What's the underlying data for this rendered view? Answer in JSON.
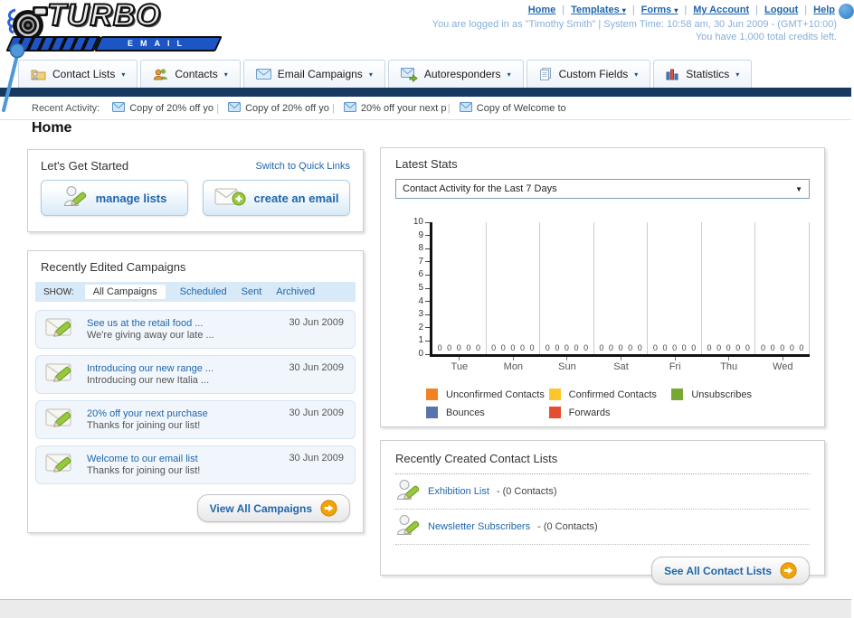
{
  "colors": {
    "link": "#1f66ad",
    "navy": "#17395f",
    "logo_blue": "#1d55c4"
  },
  "header": {
    "logo": {
      "word": "TURBO",
      "sub": "EMAIL"
    },
    "nav_links": [
      {
        "label": "Home",
        "dropdown": false
      },
      {
        "label": "Templates",
        "dropdown": true
      },
      {
        "label": "Forms",
        "dropdown": true
      },
      {
        "label": "My Account",
        "dropdown": false
      },
      {
        "label": "Logout",
        "dropdown": false
      },
      {
        "label": "Help",
        "dropdown": false
      }
    ],
    "login_info": "You are logged in as \"Timothy Smith\" | System Time: 10:58 am, 30 Jun 2009 - (GMT+10:00)",
    "credits_info": "You have 1,000 total credits left."
  },
  "nav_tabs": [
    {
      "label": "Contact Lists",
      "icon": "folder-contact-icon"
    },
    {
      "label": "Contacts",
      "icon": "contacts-icon"
    },
    {
      "label": "Email Campaigns",
      "icon": "envelope-icon"
    },
    {
      "label": "Autoresponders",
      "icon": "autoresponder-icon"
    },
    {
      "label": "Custom Fields",
      "icon": "pages-icon"
    },
    {
      "label": "Statistics",
      "icon": "chart-icon"
    }
  ],
  "recent_activity": {
    "label": "Recent Activity:",
    "items": [
      "Copy of 20% off yo",
      "Copy of 20% off yo",
      "20% off your next p",
      "Copy of Welcome to"
    ]
  },
  "page_title": "Home",
  "get_started": {
    "title": "Let's Get Started",
    "switch_link": "Switch to Quick Links",
    "buttons": [
      {
        "label": "manage lists",
        "icon": "list-edit-icon"
      },
      {
        "label": "create an email",
        "icon": "create-email-icon"
      }
    ]
  },
  "campaigns_panel": {
    "title": "Recently Edited Campaigns",
    "show_label": "SHOW:",
    "filters": [
      {
        "label": "All Campaigns",
        "active": true
      },
      {
        "label": "Scheduled",
        "active": false
      },
      {
        "label": "Sent",
        "active": false
      },
      {
        "label": "Archived",
        "active": false
      }
    ],
    "items": [
      {
        "title": "See us at the retail food ...",
        "subtitle": "We're giving away our late ...",
        "date": "30 Jun 2009"
      },
      {
        "title": "Introducing our new range ...",
        "subtitle": "Introducing our new Italia ...",
        "date": "30 Jun 2009"
      },
      {
        "title": "20% off your next purchase",
        "subtitle": "Thanks for joining our list!",
        "date": "30 Jun 2009"
      },
      {
        "title": "Welcome to our email list",
        "subtitle": "Thanks for joining our list!",
        "date": "30 Jun 2009"
      }
    ],
    "view_all_label": "View All Campaigns"
  },
  "stats_panel": {
    "title": "Latest Stats",
    "dropdown_value": "Contact Activity for the Last 7 Days"
  },
  "chart_data": {
    "type": "bar",
    "title": "Contact Activity for the Last 7 Days",
    "categories": [
      "Tue",
      "Mon",
      "Sun",
      "Sat",
      "Fri",
      "Thu",
      "Wed"
    ],
    "series": [
      {
        "name": "Unconfirmed Contacts",
        "color": "#f08221",
        "values": [
          0,
          0,
          0,
          0,
          0,
          0,
          0
        ]
      },
      {
        "name": "Confirmed Contacts",
        "color": "#fcc62c",
        "values": [
          0,
          0,
          0,
          0,
          0,
          0,
          0
        ]
      },
      {
        "name": "Unsubscribes",
        "color": "#76a832",
        "values": [
          0,
          0,
          0,
          0,
          0,
          0,
          0
        ]
      },
      {
        "name": "Bounces",
        "color": "#5775ad",
        "values": [
          0,
          0,
          0,
          0,
          0,
          0,
          0
        ]
      },
      {
        "name": "Forwards",
        "color": "#e64c2e",
        "values": [
          0,
          0,
          0,
          0,
          0,
          0,
          0
        ]
      }
    ],
    "ylim": [
      0,
      10
    ],
    "yticks": [
      0,
      1,
      2,
      3,
      4,
      5,
      6,
      7,
      8,
      9,
      10
    ],
    "grid": "vertical-day-separators",
    "legend_position": "bottom"
  },
  "contact_lists_panel": {
    "title": "Recently Created Contact Lists",
    "items": [
      {
        "name": "Exhibition List",
        "suffix": "- (0 Contacts)"
      },
      {
        "name": "Newsletter Subscribers",
        "suffix": "- (0 Contacts)"
      }
    ],
    "see_all_label": "See All Contact Lists"
  }
}
